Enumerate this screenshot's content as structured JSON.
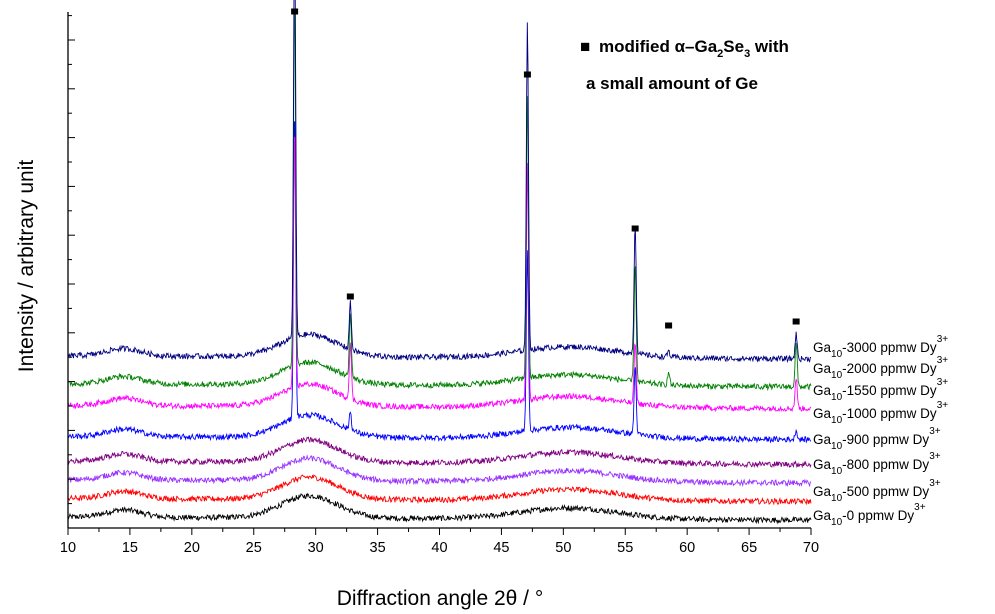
{
  "chart_data": {
    "type": "line",
    "xlabel": "Diffraction angle 2θ / °",
    "ylabel": "Intensity / arbitrary unit",
    "xlim": [
      10,
      70
    ],
    "x_ticks": [
      "10",
      "15",
      "20",
      "25",
      "30",
      "35",
      "40",
      "45",
      "50",
      "55",
      "60",
      "65",
      "70"
    ],
    "grid": false,
    "legend": {
      "marker": "■",
      "line1_pre": "modified α–Ga",
      "line1_sub1": "2",
      "line1_mid": "Se",
      "line1_sub2": "3",
      "line1_post": " with",
      "line2": "a small amount of Ge",
      "placement": "top-right"
    },
    "marked_peaks": [
      28.3,
      32.8,
      47.1,
      55.8,
      58.5,
      68.8
    ],
    "series": [
      {
        "label": "Ga10-0 ppmw Dy3+",
        "pre": "Ga",
        "sub": "10",
        "mid": "-0 ppmw Dy",
        "sup": "3+",
        "color": "#000000",
        "baseline": 0.0,
        "peaks": []
      },
      {
        "label": "Ga10-500 ppmw Dy3+",
        "pre": "Ga",
        "sub": "10",
        "mid": "-500 ppmw Dy",
        "sup": "3+",
        "color": "#ff0000",
        "baseline": 0.3,
        "peaks": []
      },
      {
        "label": "Ga10-800 ppmw Dy3+",
        "pre": "Ga",
        "sub": "10",
        "mid": "-800 ppmw Dy",
        "sup": "3+",
        "color": "#9933ff",
        "baseline": 0.6,
        "peaks": []
      },
      {
        "label": "Ga10-900 ppmw  Dy3+",
        "pre": "Ga",
        "sub": "10",
        "mid": "-900 ppmw  Dy",
        "sup": "3+",
        "color": "#800080",
        "baseline": 0.9,
        "peaks": []
      },
      {
        "label": "Ga10-1000 ppmw Dy3+",
        "pre": "Ga",
        "sub": "10",
        "mid": "-1000 ppmw Dy",
        "sup": "3+",
        "color": "#0000ff",
        "baseline": 1.3,
        "peaks": [
          [
            28.3,
            5.0
          ],
          [
            32.8,
            0.3
          ],
          [
            47.1,
            2.9
          ],
          [
            55.8,
            1.1
          ],
          [
            68.8,
            0.15
          ]
        ]
      },
      {
        "label": "Ga10-1550 ppmw Dy3+",
        "pre": "Ga",
        "sub": "10",
        "mid": "-1550 ppmw Dy",
        "sup": "3+",
        "color": "#ff00ff",
        "baseline": 1.8,
        "peaks": [
          [
            28.3,
            4.2
          ],
          [
            32.8,
            0.9
          ],
          [
            47.1,
            3.8
          ],
          [
            55.8,
            1.0
          ],
          [
            68.8,
            0.5
          ]
        ]
      },
      {
        "label": "Ga10-2000 ppmw Dy3+",
        "pre": "Ga",
        "sub": "10",
        "mid": "-2000 ppmw Dy",
        "sup": "3+",
        "color": "#008000",
        "baseline": 2.15,
        "peaks": [
          [
            28.3,
            6.0
          ],
          [
            32.8,
            1.0
          ],
          [
            47.1,
            4.6
          ],
          [
            55.8,
            1.9
          ],
          [
            58.5,
            0.2
          ],
          [
            68.8,
            0.7
          ]
        ]
      },
      {
        "label": "Ga10-3000 ppmw Dy3+",
        "pre": "Ga",
        "sub": "10",
        "mid": "-3000 ppmw Dy",
        "sup": "3+",
        "color": "#000080",
        "baseline": 2.6,
        "peaks": [
          [
            28.3,
            6.8
          ],
          [
            32.8,
            0.75
          ],
          [
            47.1,
            5.3
          ],
          [
            55.8,
            2.1
          ],
          [
            58.5,
            0.1
          ],
          [
            68.8,
            0.4
          ]
        ]
      }
    ]
  }
}
